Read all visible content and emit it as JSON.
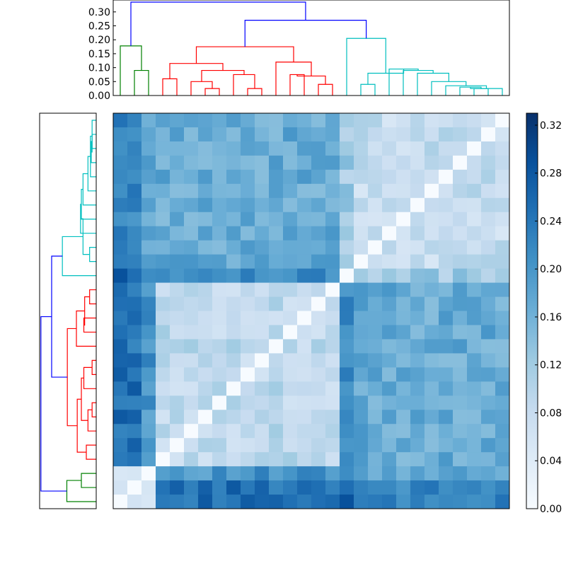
{
  "chart_data": [
    {
      "type": "heatmap",
      "title": "",
      "rows": 28,
      "cols": 28,
      "colormap": "Blues",
      "value_range": [
        0.0,
        0.33
      ],
      "ordering": "leaf order of the top and left dendrograms"
    },
    {
      "type": "dendrogram",
      "orientation": "top",
      "ylim": [
        0,
        0.33
      ],
      "yticks": [
        "0.00",
        "0.05",
        "0.10",
        "0.15",
        "0.20",
        "0.25",
        "0.30"
      ],
      "link_colors": {
        "root": "#0000ff",
        "cluster_1": "#008000",
        "cluster_2": "#ff0000",
        "cluster_3": "#00bfbf"
      }
    },
    {
      "type": "dendrogram",
      "orientation": "left",
      "xlim": [
        0.33,
        0
      ]
    },
    {
      "type": "colorbar",
      "range": [
        0.0,
        0.33
      ],
      "ticks": [
        "0.00",
        "0.04",
        "0.08",
        "0.12",
        "0.16",
        "0.20",
        "0.24",
        "0.28",
        "0.32"
      ]
    }
  ]
}
